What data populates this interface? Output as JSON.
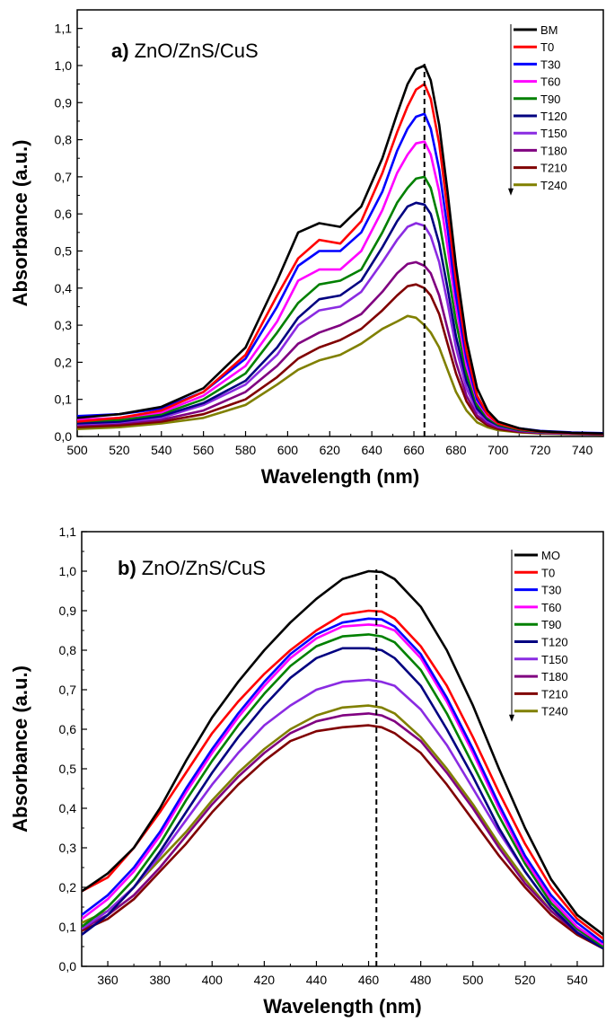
{
  "chart_data": [
    {
      "type": "line",
      "panel_label": "a)",
      "title": "ZnO/ZnS/CuS",
      "xlabel": "Wavelength (nm)",
      "ylabel": "Absorbance (a.u.)",
      "xlim": [
        500,
        750
      ],
      "ylim": [
        0,
        1.15
      ],
      "x_ticks": [
        "500",
        "520",
        "540",
        "560",
        "580",
        "600",
        "620",
        "640",
        "660",
        "680",
        "700",
        "720",
        "740"
      ],
      "y_ticks": [
        "0,0",
        "0,1",
        "0,2",
        "0,3",
        "0,4",
        "0,5",
        "0,6",
        "0,7",
        "0,8",
        "0,9",
        "1,0",
        "1,1"
      ],
      "x_tick_values": [
        500,
        520,
        540,
        560,
        580,
        600,
        620,
        640,
        660,
        680,
        700,
        720,
        740
      ],
      "y_tick_values": [
        0,
        0.1,
        0.2,
        0.3,
        0.4,
        0.5,
        0.6,
        0.7,
        0.8,
        0.9,
        1.0,
        1.1
      ],
      "reference_line_x": 665,
      "legend_position": "top-right",
      "x": [
        500,
        520,
        540,
        560,
        580,
        595,
        605,
        615,
        625,
        635,
        645,
        652,
        657,
        661,
        665,
        668,
        672,
        676,
        680,
        685,
        690,
        695,
        700,
        710,
        720,
        735,
        750
      ],
      "series": [
        {
          "name": "BM",
          "color": "#000000",
          "values": [
            0.05,
            0.06,
            0.08,
            0.13,
            0.24,
            0.42,
            0.55,
            0.575,
            0.565,
            0.62,
            0.75,
            0.87,
            0.95,
            0.99,
            1.0,
            0.96,
            0.84,
            0.66,
            0.46,
            0.26,
            0.13,
            0.07,
            0.04,
            0.022,
            0.014,
            0.01,
            0.008
          ]
        },
        {
          "name": "T0",
          "color": "#ff0000",
          "values": [
            0.04,
            0.05,
            0.07,
            0.12,
            0.22,
            0.38,
            0.48,
            0.53,
            0.52,
            0.58,
            0.71,
            0.82,
            0.89,
            0.935,
            0.95,
            0.91,
            0.79,
            0.61,
            0.42,
            0.23,
            0.11,
            0.06,
            0.035,
            0.02,
            0.013,
            0.009,
            0.007
          ]
        },
        {
          "name": "T30",
          "color": "#0000ff",
          "values": [
            0.055,
            0.06,
            0.075,
            0.12,
            0.21,
            0.35,
            0.46,
            0.5,
            0.5,
            0.55,
            0.66,
            0.77,
            0.83,
            0.862,
            0.87,
            0.83,
            0.72,
            0.56,
            0.38,
            0.21,
            0.1,
            0.06,
            0.038,
            0.022,
            0.015,
            0.011,
            0.009
          ]
        },
        {
          "name": "T60",
          "color": "#ff00ff",
          "values": [
            0.045,
            0.05,
            0.065,
            0.11,
            0.19,
            0.31,
            0.42,
            0.45,
            0.45,
            0.5,
            0.61,
            0.71,
            0.76,
            0.79,
            0.795,
            0.76,
            0.66,
            0.51,
            0.35,
            0.19,
            0.095,
            0.055,
            0.035,
            0.02,
            0.014,
            0.01,
            0.008
          ]
        },
        {
          "name": "T90",
          "color": "#008000",
          "values": [
            0.04,
            0.045,
            0.06,
            0.1,
            0.17,
            0.28,
            0.36,
            0.41,
            0.42,
            0.45,
            0.55,
            0.63,
            0.67,
            0.695,
            0.7,
            0.67,
            0.58,
            0.45,
            0.31,
            0.17,
            0.085,
            0.05,
            0.032,
            0.018,
            0.012,
            0.009,
            0.007
          ]
        },
        {
          "name": "T120",
          "color": "#000080",
          "values": [
            0.035,
            0.04,
            0.055,
            0.09,
            0.15,
            0.24,
            0.32,
            0.37,
            0.38,
            0.42,
            0.51,
            0.58,
            0.62,
            0.63,
            0.625,
            0.6,
            0.52,
            0.4,
            0.27,
            0.15,
            0.075,
            0.045,
            0.03,
            0.017,
            0.012,
            0.009,
            0.007
          ]
        },
        {
          "name": "T150",
          "color": "#8a2be2",
          "values": [
            0.033,
            0.038,
            0.05,
            0.085,
            0.14,
            0.22,
            0.3,
            0.34,
            0.35,
            0.39,
            0.47,
            0.53,
            0.565,
            0.575,
            0.568,
            0.54,
            0.47,
            0.36,
            0.24,
            0.13,
            0.068,
            0.04,
            0.027,
            0.016,
            0.011,
            0.008,
            0.006
          ]
        },
        {
          "name": "T180",
          "color": "#800080",
          "values": [
            0.03,
            0.035,
            0.045,
            0.07,
            0.12,
            0.19,
            0.25,
            0.28,
            0.3,
            0.33,
            0.39,
            0.44,
            0.465,
            0.47,
            0.46,
            0.44,
            0.38,
            0.29,
            0.2,
            0.11,
            0.057,
            0.035,
            0.024,
            0.014,
            0.01,
            0.007,
            0.006
          ]
        },
        {
          "name": "T210",
          "color": "#800000",
          "values": [
            0.025,
            0.03,
            0.04,
            0.06,
            0.1,
            0.16,
            0.21,
            0.24,
            0.26,
            0.29,
            0.34,
            0.38,
            0.405,
            0.41,
            0.4,
            0.38,
            0.33,
            0.25,
            0.17,
            0.095,
            0.05,
            0.03,
            0.02,
            0.012,
            0.009,
            0.007,
            0.005
          ]
        },
        {
          "name": "T240",
          "color": "#808000",
          "values": [
            0.02,
            0.025,
            0.035,
            0.05,
            0.085,
            0.14,
            0.18,
            0.205,
            0.22,
            0.25,
            0.29,
            0.31,
            0.325,
            0.32,
            0.3,
            0.28,
            0.24,
            0.18,
            0.12,
            0.07,
            0.038,
            0.025,
            0.017,
            0.011,
            0.008,
            0.006,
            0.005
          ]
        }
      ]
    },
    {
      "type": "line",
      "panel_label": "b)",
      "title": "ZnO/ZnS/CuS",
      "xlabel": "Wavelength (nm)",
      "ylabel": "Absorbance (a.u.)",
      "xlim": [
        350,
        550
      ],
      "ylim": [
        0,
        1.1
      ],
      "x_ticks": [
        "360",
        "380",
        "400",
        "420",
        "440",
        "460",
        "480",
        "500",
        "520",
        "540"
      ],
      "y_ticks": [
        "0,0",
        "0,1",
        "0,2",
        "0,3",
        "0,4",
        "0,5",
        "0,6",
        "0,7",
        "0,8",
        "0,9",
        "1,0",
        "1,1"
      ],
      "x_tick_values": [
        360,
        380,
        400,
        420,
        440,
        460,
        480,
        500,
        520,
        540
      ],
      "y_tick_values": [
        0,
        0.1,
        0.2,
        0.3,
        0.4,
        0.5,
        0.6,
        0.7,
        0.8,
        0.9,
        1.0,
        1.1
      ],
      "reference_line_x": 463,
      "legend_position": "top-right",
      "x": [
        350,
        360,
        370,
        380,
        390,
        400,
        410,
        420,
        430,
        440,
        450,
        460,
        465,
        470,
        480,
        490,
        500,
        510,
        520,
        530,
        540,
        550
      ],
      "series": [
        {
          "name": "MO",
          "color": "#000000",
          "values": [
            0.19,
            0.235,
            0.3,
            0.4,
            0.52,
            0.63,
            0.72,
            0.8,
            0.87,
            0.93,
            0.98,
            1.0,
            0.998,
            0.98,
            0.91,
            0.8,
            0.66,
            0.5,
            0.35,
            0.22,
            0.13,
            0.08
          ]
        },
        {
          "name": "T0",
          "color": "#ff0000",
          "values": [
            0.19,
            0.225,
            0.3,
            0.39,
            0.49,
            0.59,
            0.67,
            0.74,
            0.8,
            0.85,
            0.89,
            0.9,
            0.898,
            0.88,
            0.81,
            0.71,
            0.58,
            0.44,
            0.31,
            0.2,
            0.12,
            0.07
          ]
        },
        {
          "name": "T30",
          "color": "#0000ff",
          "values": [
            0.13,
            0.18,
            0.25,
            0.34,
            0.45,
            0.55,
            0.64,
            0.72,
            0.79,
            0.84,
            0.87,
            0.88,
            0.878,
            0.86,
            0.79,
            0.68,
            0.55,
            0.41,
            0.28,
            0.18,
            0.11,
            0.06
          ]
        },
        {
          "name": "T60",
          "color": "#ff00ff",
          "values": [
            0.12,
            0.17,
            0.24,
            0.33,
            0.44,
            0.54,
            0.63,
            0.71,
            0.78,
            0.83,
            0.86,
            0.865,
            0.862,
            0.85,
            0.78,
            0.67,
            0.54,
            0.4,
            0.27,
            0.17,
            0.1,
            0.055
          ]
        },
        {
          "name": "T90",
          "color": "#008000",
          "values": [
            0.1,
            0.15,
            0.22,
            0.31,
            0.42,
            0.52,
            0.61,
            0.69,
            0.76,
            0.81,
            0.835,
            0.84,
            0.835,
            0.82,
            0.75,
            0.64,
            0.51,
            0.38,
            0.26,
            0.16,
            0.095,
            0.05
          ]
        },
        {
          "name": "T120",
          "color": "#000080",
          "values": [
            0.08,
            0.13,
            0.2,
            0.29,
            0.39,
            0.49,
            0.58,
            0.66,
            0.73,
            0.78,
            0.805,
            0.805,
            0.8,
            0.78,
            0.71,
            0.6,
            0.48,
            0.35,
            0.24,
            0.15,
            0.085,
            0.045
          ]
        },
        {
          "name": "T150",
          "color": "#8a2be2",
          "values": [
            0.095,
            0.14,
            0.2,
            0.28,
            0.37,
            0.46,
            0.54,
            0.61,
            0.66,
            0.7,
            0.72,
            0.725,
            0.72,
            0.71,
            0.65,
            0.56,
            0.45,
            0.34,
            0.24,
            0.15,
            0.09,
            0.05
          ]
        },
        {
          "name": "T180",
          "color": "#800080",
          "values": [
            0.095,
            0.13,
            0.18,
            0.25,
            0.33,
            0.41,
            0.48,
            0.54,
            0.59,
            0.62,
            0.635,
            0.64,
            0.635,
            0.62,
            0.57,
            0.49,
            0.4,
            0.3,
            0.21,
            0.14,
            0.085,
            0.05
          ]
        },
        {
          "name": "T210",
          "color": "#800000",
          "values": [
            0.09,
            0.12,
            0.17,
            0.24,
            0.31,
            0.39,
            0.46,
            0.52,
            0.57,
            0.595,
            0.605,
            0.61,
            0.605,
            0.59,
            0.54,
            0.46,
            0.37,
            0.28,
            0.2,
            0.13,
            0.08,
            0.045
          ]
        },
        {
          "name": "T240",
          "color": "#808000",
          "values": [
            0.11,
            0.14,
            0.2,
            0.27,
            0.34,
            0.42,
            0.49,
            0.55,
            0.6,
            0.635,
            0.655,
            0.66,
            0.655,
            0.64,
            0.58,
            0.5,
            0.41,
            0.31,
            0.22,
            0.14,
            0.085,
            0.05
          ]
        }
      ]
    }
  ]
}
